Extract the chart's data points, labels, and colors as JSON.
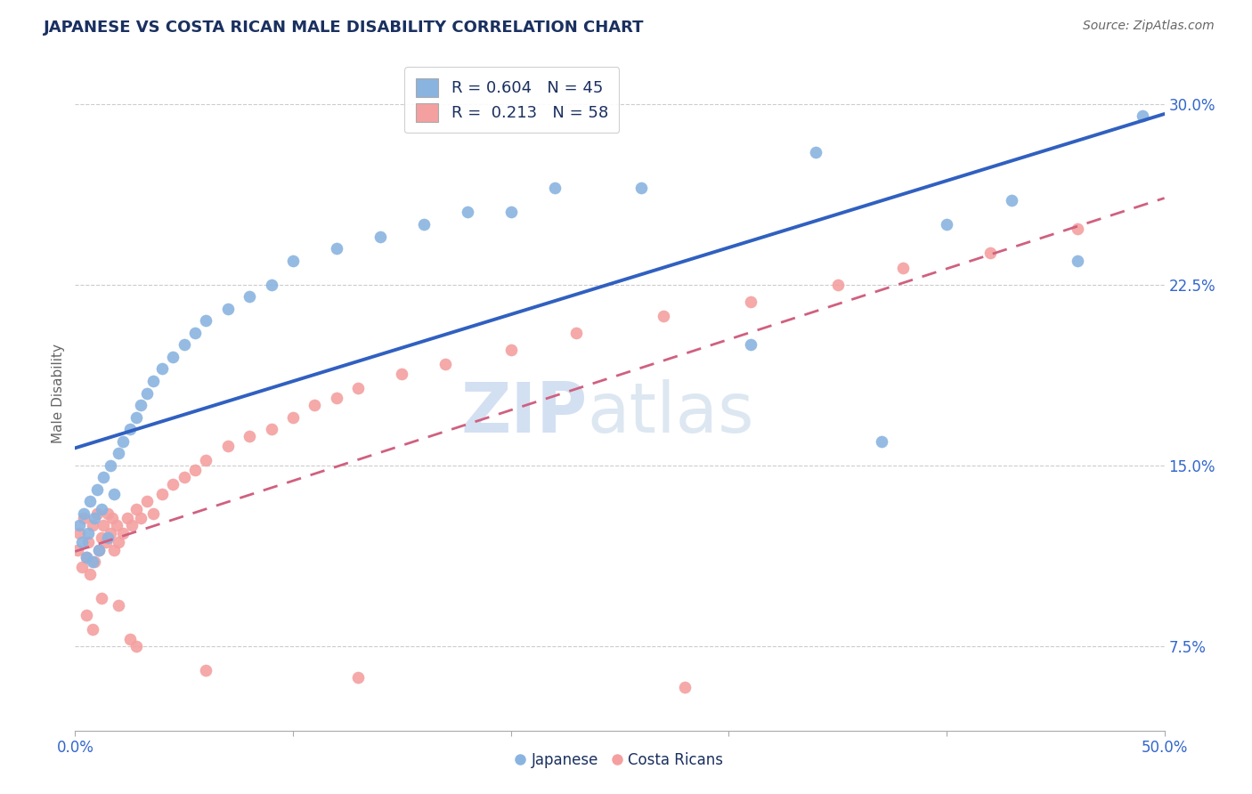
{
  "title": "JAPANESE VS COSTA RICAN MALE DISABILITY CORRELATION CHART",
  "source": "Source: ZipAtlas.com",
  "ylabel": "Male Disability",
  "xlim": [
    0.0,
    0.5
  ],
  "ylim": [
    0.04,
    0.32
  ],
  "ytick_right": [
    0.075,
    0.15,
    0.225,
    0.3
  ],
  "ytick_right_labels": [
    "7.5%",
    "15.0%",
    "22.5%",
    "30.0%"
  ],
  "legend_r1": "R = 0.604",
  "legend_n1": "N = 45",
  "legend_r2": "R =  0.213",
  "legend_n2": "N = 58",
  "blue_color": "#8ab4e0",
  "pink_color": "#f4a0a0",
  "blue_line_color": "#3060c0",
  "pink_line_color": "#d06080",
  "watermark_zip": "ZIP",
  "watermark_atlas": "atlas",
  "japanese_x": [
    0.002,
    0.003,
    0.004,
    0.005,
    0.006,
    0.007,
    0.008,
    0.009,
    0.01,
    0.011,
    0.012,
    0.013,
    0.015,
    0.016,
    0.018,
    0.02,
    0.022,
    0.025,
    0.028,
    0.03,
    0.033,
    0.036,
    0.04,
    0.045,
    0.05,
    0.055,
    0.06,
    0.07,
    0.08,
    0.09,
    0.1,
    0.12,
    0.14,
    0.16,
    0.18,
    0.2,
    0.22,
    0.26,
    0.31,
    0.34,
    0.37,
    0.4,
    0.43,
    0.46,
    0.49
  ],
  "japanese_y": [
    0.125,
    0.118,
    0.13,
    0.112,
    0.122,
    0.135,
    0.11,
    0.128,
    0.14,
    0.115,
    0.132,
    0.145,
    0.12,
    0.15,
    0.138,
    0.155,
    0.16,
    0.165,
    0.17,
    0.175,
    0.18,
    0.185,
    0.19,
    0.195,
    0.2,
    0.205,
    0.21,
    0.215,
    0.22,
    0.225,
    0.235,
    0.24,
    0.245,
    0.25,
    0.255,
    0.255,
    0.265,
    0.265,
    0.2,
    0.28,
    0.16,
    0.25,
    0.26,
    0.235,
    0.295
  ],
  "costarican_x": [
    0.001,
    0.002,
    0.003,
    0.004,
    0.005,
    0.006,
    0.007,
    0.008,
    0.009,
    0.01,
    0.011,
    0.012,
    0.013,
    0.014,
    0.015,
    0.016,
    0.017,
    0.018,
    0.019,
    0.02,
    0.022,
    0.024,
    0.026,
    0.028,
    0.03,
    0.033,
    0.036,
    0.04,
    0.045,
    0.05,
    0.055,
    0.06,
    0.07,
    0.08,
    0.09,
    0.1,
    0.11,
    0.12,
    0.13,
    0.15,
    0.17,
    0.2,
    0.23,
    0.27,
    0.31,
    0.35,
    0.38,
    0.42,
    0.46,
    0.005,
    0.008,
    0.012,
    0.02,
    0.025,
    0.028,
    0.06,
    0.13,
    0.28
  ],
  "costarican_y": [
    0.115,
    0.122,
    0.108,
    0.128,
    0.112,
    0.118,
    0.105,
    0.125,
    0.11,
    0.13,
    0.115,
    0.12,
    0.125,
    0.118,
    0.13,
    0.122,
    0.128,
    0.115,
    0.125,
    0.118,
    0.122,
    0.128,
    0.125,
    0.132,
    0.128,
    0.135,
    0.13,
    0.138,
    0.142,
    0.145,
    0.148,
    0.152,
    0.158,
    0.162,
    0.165,
    0.17,
    0.175,
    0.178,
    0.182,
    0.188,
    0.192,
    0.198,
    0.205,
    0.212,
    0.218,
    0.225,
    0.232,
    0.238,
    0.248,
    0.088,
    0.082,
    0.095,
    0.092,
    0.078,
    0.075,
    0.065,
    0.062,
    0.058
  ]
}
